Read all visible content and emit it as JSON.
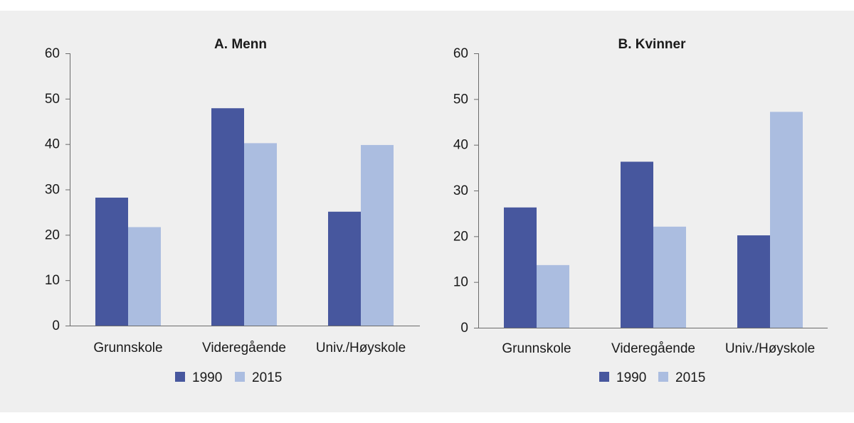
{
  "chart_data": [
    {
      "type": "bar",
      "title": "A. Menn",
      "categories": [
        "Grunnskole",
        "Videregående",
        "Univ./Høyskole"
      ],
      "series": [
        {
          "name": "1990",
          "values": [
            28.2,
            47.9,
            25.1
          ]
        },
        {
          "name": "2015",
          "values": [
            21.7,
            40.2,
            39.8
          ]
        }
      ],
      "xlabel": "",
      "ylabel": "",
      "ylim": [
        0,
        60
      ],
      "yticks": [
        "0",
        "10",
        "20",
        "30",
        "40",
        "50",
        "60"
      ],
      "grid": false,
      "legend": "bottom"
    },
    {
      "type": "bar",
      "title": "B. Kvinner",
      "categories": [
        "Grunnskole",
        "Videregående",
        "Univ./Høyskole"
      ],
      "series": [
        {
          "name": "1990",
          "values": [
            26.3,
            36.3,
            20.2
          ]
        },
        {
          "name": "2015",
          "values": [
            13.7,
            22.1,
            47.2
          ]
        }
      ],
      "xlabel": "",
      "ylabel": "",
      "ylim": [
        0,
        60
      ],
      "yticks": [
        "0",
        "10",
        "20",
        "30",
        "40",
        "50",
        "60"
      ],
      "grid": false,
      "legend": "bottom"
    }
  ],
  "colors": {
    "series_1990": "#47579e",
    "series_2015": "#abbde0",
    "background": "#efefef",
    "axis": "#6b6b6b"
  }
}
